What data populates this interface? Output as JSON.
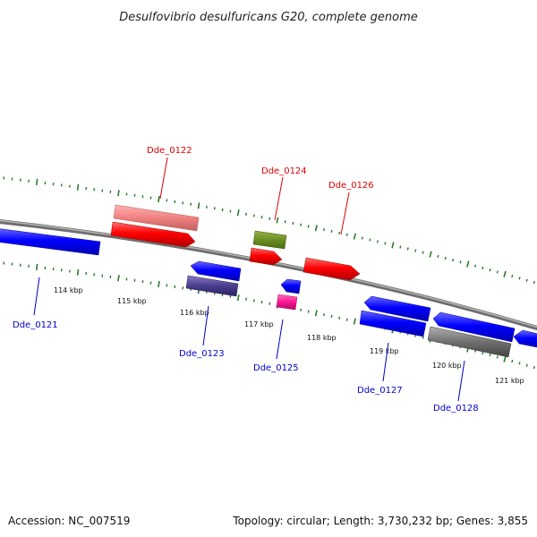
{
  "title": "Desulfovibrio desulfuricans G20, complete genome",
  "footer": {
    "accession": "Accession: NC_007519",
    "summary": "Topology: circular; Length: 3,730,232 bp; Genes: 3,855"
  },
  "colors": {
    "forward_label": "#dd0000",
    "reverse_label": "#0000cc",
    "backbone": "#808080",
    "ticks": "#2a7a2a"
  },
  "ticks": [
    {
      "label": "114 kbp"
    },
    {
      "label": "115 kbp"
    },
    {
      "label": "116 kbp"
    },
    {
      "label": "117 kbp"
    },
    {
      "label": "118 kbp"
    },
    {
      "label": "119 kbp"
    },
    {
      "label": "120 kbp"
    },
    {
      "label": "121 kbp"
    }
  ],
  "genes": [
    {
      "label": "Dde_0121",
      "strand": "reverse",
      "color": "#0000ff"
    },
    {
      "label": "Dde_0122",
      "strand": "forward",
      "color": "#ff0000"
    },
    {
      "label": "Dde_0123",
      "strand": "reverse",
      "color": "#0000ff"
    },
    {
      "label": "Dde_0124",
      "strand": "forward",
      "color": "#ff0000"
    },
    {
      "label": "Dde_0125",
      "strand": "reverse",
      "color": "#0000ff"
    },
    {
      "label": "Dde_0126",
      "strand": "forward",
      "color": "#ff0000"
    },
    {
      "label": "Dde_0127",
      "strand": "reverse",
      "color": "#0000ff"
    },
    {
      "label": "Dde_0128",
      "strand": "reverse",
      "color": "#0000ff"
    }
  ]
}
